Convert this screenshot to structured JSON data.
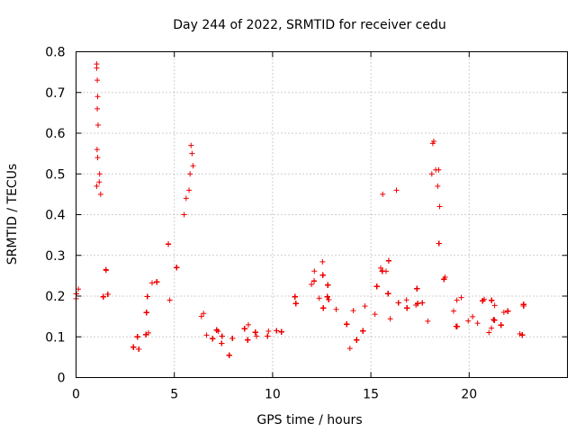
{
  "chart_data": {
    "type": "scatter",
    "title": "Day 244 of 2022, SRMTID for receiver cedu",
    "xlabel": "GPS time / hours",
    "ylabel": "SRMTID / TECUs",
    "xlim": [
      0,
      25
    ],
    "ylim": [
      0,
      0.8
    ],
    "xticks": [
      0,
      5,
      10,
      15,
      20
    ],
    "xtick_labels": [
      "0",
      "5",
      "10",
      "15",
      "20"
    ],
    "yticks": [
      0,
      0.1,
      0.2,
      0.3,
      0.4,
      0.5,
      0.6,
      0.7,
      0.8
    ],
    "ytick_labels": [
      "0",
      "0.1",
      "0.2",
      "0.3",
      "0.4",
      "0.5",
      "0.6",
      "0.7",
      "0.8"
    ],
    "grid": true,
    "marker": "+",
    "color": "#ee0000",
    "series": [
      {
        "name": "SRMTID",
        "data_range": [
          0,
          22.9
        ],
        "profile": [
          [
            0.0,
            0.18,
            0.05
          ],
          [
            0.3,
            0.2,
            0.06
          ],
          [
            0.6,
            0.19,
            0.06
          ],
          [
            0.9,
            0.16,
            0.06
          ],
          [
            1.0,
            0.3,
            0.18
          ],
          [
            1.1,
            0.4,
            0.18
          ],
          [
            1.3,
            0.32,
            0.12
          ],
          [
            1.6,
            0.18,
            0.05
          ],
          [
            2.0,
            0.12,
            0.04
          ],
          [
            2.5,
            0.07,
            0.03
          ],
          [
            3.0,
            0.08,
            0.03
          ],
          [
            3.5,
            0.11,
            0.04
          ],
          [
            4.0,
            0.2,
            0.07
          ],
          [
            4.5,
            0.22,
            0.06
          ],
          [
            5.0,
            0.26,
            0.08
          ],
          [
            5.5,
            0.3,
            0.09
          ],
          [
            5.9,
            0.35,
            0.12
          ],
          [
            6.3,
            0.2,
            0.06
          ],
          [
            6.7,
            0.1,
            0.04
          ],
          [
            7.5,
            0.08,
            0.03
          ],
          [
            8.5,
            0.09,
            0.03
          ],
          [
            9.5,
            0.09,
            0.03
          ],
          [
            10.5,
            0.12,
            0.04
          ],
          [
            11.0,
            0.2,
            0.07
          ],
          [
            11.5,
            0.22,
            0.08
          ],
          [
            12.0,
            0.21,
            0.08
          ],
          [
            12.5,
            0.2,
            0.07
          ],
          [
            13.0,
            0.17,
            0.06
          ],
          [
            13.5,
            0.12,
            0.04
          ],
          [
            14.5,
            0.12,
            0.04
          ],
          [
            15.0,
            0.15,
            0.05
          ],
          [
            15.5,
            0.22,
            0.07
          ],
          [
            16.0,
            0.21,
            0.07
          ],
          [
            17.0,
            0.19,
            0.07
          ],
          [
            18.0,
            0.22,
            0.08
          ],
          [
            18.4,
            0.28,
            0.1
          ],
          [
            19.0,
            0.18,
            0.06
          ],
          [
            20.0,
            0.16,
            0.05
          ],
          [
            21.0,
            0.18,
            0.07
          ],
          [
            22.0,
            0.13,
            0.05
          ],
          [
            22.9,
            0.12,
            0.05
          ]
        ],
        "peaks": [
          [
            1.05,
            0.77
          ],
          [
            1.05,
            0.76
          ],
          [
            1.08,
            0.73
          ],
          [
            1.1,
            0.69
          ],
          [
            1.08,
            0.66
          ],
          [
            1.12,
            0.62
          ],
          [
            1.07,
            0.56
          ],
          [
            1.1,
            0.54
          ],
          [
            1.2,
            0.5
          ],
          [
            1.18,
            0.48
          ],
          [
            1.25,
            0.45
          ],
          [
            1.05,
            0.47
          ],
          [
            5.85,
            0.57
          ],
          [
            5.9,
            0.55
          ],
          [
            5.95,
            0.52
          ],
          [
            5.8,
            0.5
          ],
          [
            5.75,
            0.46
          ],
          [
            5.6,
            0.44
          ],
          [
            5.5,
            0.4
          ],
          [
            18.2,
            0.58
          ],
          [
            18.15,
            0.575
          ],
          [
            18.3,
            0.51
          ],
          [
            18.45,
            0.51
          ],
          [
            18.1,
            0.5
          ],
          [
            18.4,
            0.47
          ],
          [
            18.5,
            0.42
          ],
          [
            15.6,
            0.45
          ],
          [
            16.3,
            0.46
          ]
        ]
      }
    ]
  }
}
